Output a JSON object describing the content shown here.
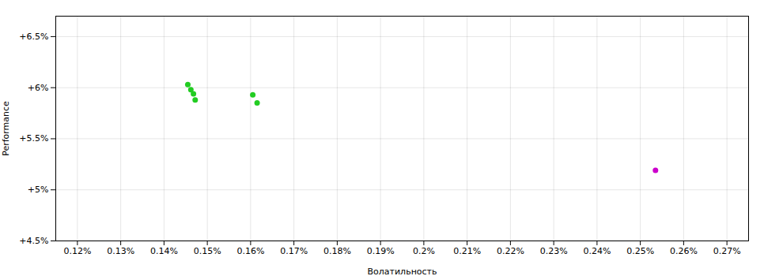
{
  "chart_data": {
    "type": "scatter",
    "xlabel": "Волатильность",
    "ylabel": "Performance",
    "xlim": [
      0.115,
      0.275
    ],
    "ylim": [
      0.045,
      0.067
    ],
    "xticks": [
      {
        "value": 0.12,
        "label": "0.12%"
      },
      {
        "value": 0.13,
        "label": "0.13%"
      },
      {
        "value": 0.14,
        "label": "0.14%"
      },
      {
        "value": 0.15,
        "label": "0.15%"
      },
      {
        "value": 0.16,
        "label": "0.16%"
      },
      {
        "value": 0.17,
        "label": "0.17%"
      },
      {
        "value": 0.18,
        "label": "0.18%"
      },
      {
        "value": 0.19,
        "label": "0.19%"
      },
      {
        "value": 0.2,
        "label": "0.2%"
      },
      {
        "value": 0.21,
        "label": "0.21%"
      },
      {
        "value": 0.22,
        "label": "0.22%"
      },
      {
        "value": 0.23,
        "label": "0.23%"
      },
      {
        "value": 0.24,
        "label": "0.24%"
      },
      {
        "value": 0.25,
        "label": "0.25%"
      },
      {
        "value": 0.26,
        "label": "0.26%"
      },
      {
        "value": 0.27,
        "label": "0.27%"
      }
    ],
    "yticks": [
      {
        "value": 0.045,
        "label": "+4.5%"
      },
      {
        "value": 0.05,
        "label": "+5%"
      },
      {
        "value": 0.055,
        "label": "+5.5%"
      },
      {
        "value": 0.06,
        "label": "+6%"
      },
      {
        "value": 0.065,
        "label": "+6.5%"
      }
    ],
    "grid": true,
    "series": [
      {
        "color": "#22cc22",
        "x": [
          0.1455,
          0.1462,
          0.1468,
          0.1472,
          0.1605,
          0.1615
        ],
        "values": [
          0.0603,
          0.0598,
          0.0594,
          0.0588,
          0.0593,
          0.0585
        ]
      },
      {
        "color": "#cc00cc",
        "x": [
          0.2535
        ],
        "values": [
          0.0519
        ]
      }
    ]
  }
}
